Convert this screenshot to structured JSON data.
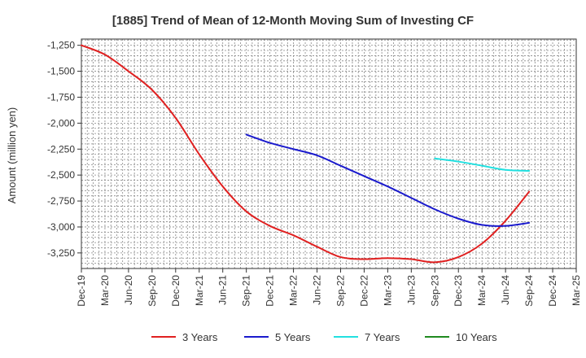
{
  "chart_data": {
    "type": "line",
    "title": "[1885]  Trend of Mean of 12-Month Moving Sum of Investing CF",
    "xlabel": "",
    "ylabel": "Amount (million yen)",
    "ylim": [
      -3400,
      -1190
    ],
    "yticks": [
      -1250,
      -1500,
      -1750,
      -2000,
      -2250,
      -2500,
      -2750,
      -3000,
      -3250
    ],
    "ytick_labels": [
      "-1,250",
      "-1,500",
      "-1,750",
      "-2,000",
      "-2,250",
      "-2,500",
      "-2,750",
      "-3,000",
      "-3,250"
    ],
    "categories": [
      "Dec-19",
      "Mar-20",
      "Jun-20",
      "Sep-20",
      "Dec-20",
      "Mar-21",
      "Jun-21",
      "Sep-21",
      "Dec-21",
      "Mar-22",
      "Jun-22",
      "Sep-22",
      "Dec-22",
      "Mar-23",
      "Jun-23",
      "Sep-23",
      "Dec-23",
      "Mar-24",
      "Jun-24",
      "Sep-24",
      "Dec-24",
      "Mar-25"
    ],
    "grid": true,
    "legend_position": "bottom",
    "series": [
      {
        "name": "3 Years",
        "color": "#e02020",
        "values": [
          -1250,
          -1340,
          -1500,
          -1680,
          -1950,
          -2300,
          -2610,
          -2850,
          -2990,
          -3080,
          -3190,
          -3290,
          -3310,
          -3300,
          -3310,
          -3340,
          -3290,
          -3160,
          -2940,
          -2660,
          null,
          null
        ]
      },
      {
        "name": "5 Years",
        "color": "#1a1acd",
        "values": [
          null,
          null,
          null,
          null,
          null,
          null,
          null,
          -2110,
          -2190,
          -2250,
          -2310,
          -2410,
          -2510,
          -2610,
          -2720,
          -2830,
          -2920,
          -2980,
          -2990,
          -2960,
          null,
          null
        ]
      },
      {
        "name": "7 Years",
        "color": "#22e0e0",
        "values": [
          null,
          null,
          null,
          null,
          null,
          null,
          null,
          null,
          null,
          null,
          null,
          null,
          null,
          null,
          null,
          -2340,
          -2370,
          -2410,
          -2450,
          -2460,
          null,
          null
        ]
      },
      {
        "name": "10 Years",
        "color": "#1f8a1f",
        "values": [
          null,
          null,
          null,
          null,
          null,
          null,
          null,
          null,
          null,
          null,
          null,
          null,
          null,
          null,
          null,
          null,
          null,
          null,
          null,
          null,
          null,
          null
        ]
      }
    ]
  }
}
